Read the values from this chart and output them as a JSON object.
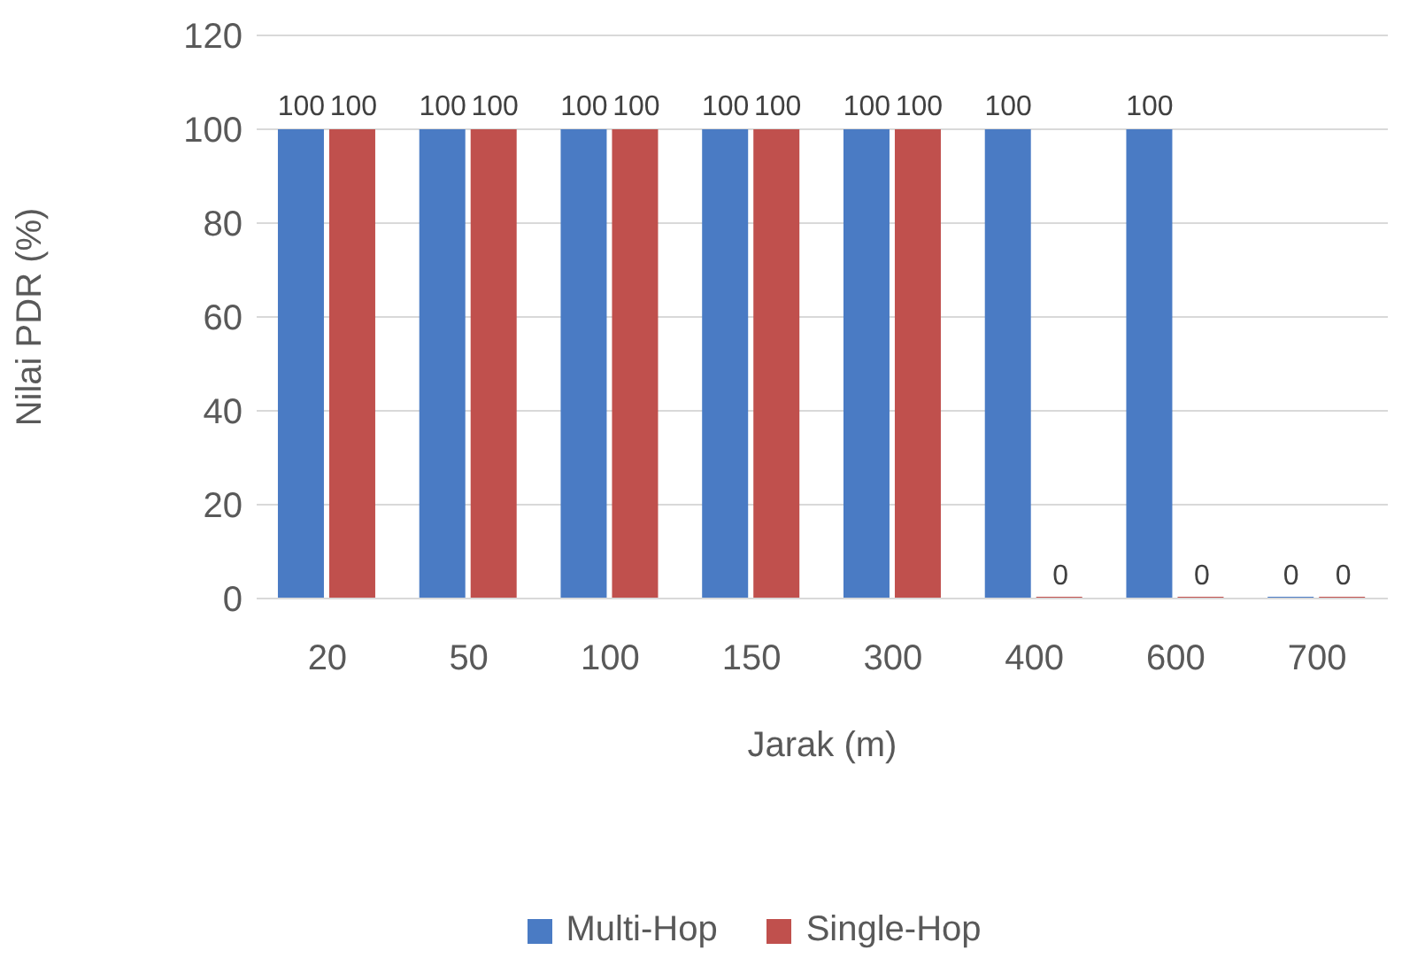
{
  "chart_data": {
    "type": "bar",
    "xlabel": "Jarak (m)",
    "ylabel": "Nilai PDR (%)",
    "categories": [
      "20",
      "50",
      "100",
      "150",
      "300",
      "400",
      "600",
      "700"
    ],
    "series": [
      {
        "name": "Multi-Hop",
        "color": "#4a7bc4",
        "values": [
          100,
          100,
          100,
          100,
          100,
          100,
          100,
          0
        ]
      },
      {
        "name": "Single-Hop",
        "color": "#c0504d",
        "values": [
          100,
          100,
          100,
          100,
          100,
          0,
          0,
          0
        ]
      }
    ],
    "ylim": [
      0,
      120
    ],
    "yticks": [
      0,
      20,
      40,
      60,
      80,
      100,
      120
    ],
    "grid": "y",
    "legend": "bottom",
    "data_labels": true
  }
}
